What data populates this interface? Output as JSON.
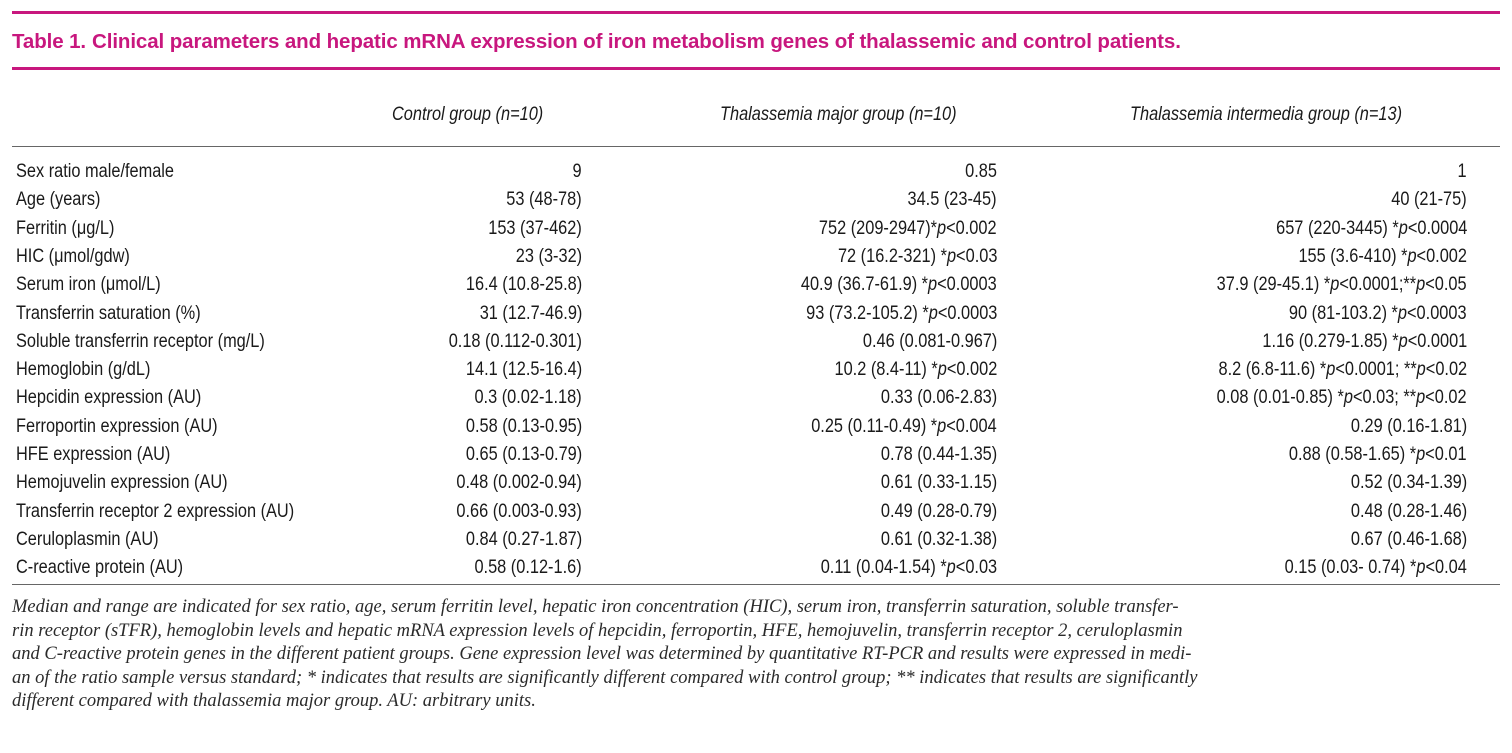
{
  "colors": {
    "accent": "#c8177e",
    "text": "#1a1a1a"
  },
  "caption": {
    "label": "Table 1.",
    "text": "Clinical parameters and hepatic mRNA expression of iron metabolism genes of thalassemic and control patients."
  },
  "columns": [
    "Control group (n=10)",
    "Thalassemia major group (n=10)",
    "Thalassemia intermedia group (n=13)"
  ],
  "rows": [
    {
      "param": "Sex ratio male/female",
      "c1": "9",
      "c2": "0.85",
      "c3": "1"
    },
    {
      "param": "Age (years)",
      "c1": "53 (48-78)",
      "c2": "34.5 (23-45)",
      "c3": "40 (21-75)"
    },
    {
      "param": "Ferritin (μg/L)",
      "c1": "153 (37-462)",
      "c2": "752 (209-2947)*p<0.002",
      "c3": "657 (220-3445) *p<0.0004"
    },
    {
      "param": "HIC (μmol/gdw)",
      "c1": "23 (3-32)",
      "c2": "72 (16.2-321) *p<0.03",
      "c3": "155 (3.6-410) *p<0.002"
    },
    {
      "param": "Serum iron (μmol/L)",
      "c1": "16.4 (10.8-25.8)",
      "c2": "40.9 (36.7-61.9) *p<0.0003",
      "c3": "37.9 (29-45.1) *p<0.0001;**p<0.05"
    },
    {
      "param": "Transferrin saturation (%)",
      "c1": "31 (12.7-46.9)",
      "c2": "93 (73.2-105.2) *p<0.0003",
      "c3": "90 (81-103.2) *p<0.0003"
    },
    {
      "param": "Soluble transferrin receptor (mg/L)",
      "c1": "0.18 (0.112-0.301)",
      "c2": "0.46 (0.081-0.967)",
      "c3": "1.16 (0.279-1.85) *p<0.0001"
    },
    {
      "param": "Hemoglobin (g/dL)",
      "c1": "14.1 (12.5-16.4)",
      "c2": "10.2 (8.4-11) *p<0.002",
      "c3": "8.2 (6.8-11.6) *p<0.0001; **p<0.02"
    },
    {
      "param": "Hepcidin expression (AU)",
      "c1": "0.3 (0.02-1.18)",
      "c2": "0.33 (0.06-2.83)",
      "c3": "0.08 (0.01-0.85) *p<0.03; **p<0.02"
    },
    {
      "param": "Ferroportin expression (AU)",
      "c1": "0.58 (0.13-0.95)",
      "c2": "0.25 (0.11-0.49) *p<0.004",
      "c3": "0.29 (0.16-1.81)"
    },
    {
      "param": "HFE expression (AU)",
      "c1": "0.65 (0.13-0.79)",
      "c2": "0.78 (0.44-1.35)",
      "c3": "0.88 (0.58-1.65) *p<0.01"
    },
    {
      "param": "Hemojuvelin expression (AU)",
      "c1": "0.48 (0.002-0.94)",
      "c2": "0.61 (0.33-1.15)",
      "c3": "0.52 (0.34-1.39)"
    },
    {
      "param": "Transferrin receptor 2 expression (AU)",
      "c1": "0.66 (0.003-0.93)",
      "c2": "0.49 (0.28-0.79)",
      "c3": "0.48 (0.28-1.46)"
    },
    {
      "param": "Ceruloplasmin (AU)",
      "c1": "0.84 (0.27-1.87)",
      "c2": "0.61 (0.32-1.38)",
      "c3": "0.67 (0.46-1.68)"
    },
    {
      "param": "C-reactive protein (AU)",
      "c1": "0.58 (0.12-1.6)",
      "c2": "0.11 (0.04-1.54) *p<0.03",
      "c3": "0.15 (0.03- 0.74) *p<0.04"
    }
  ],
  "footnote_lines": [
    "Median and range are indicated for sex ratio, age, serum ferritin level, hepatic iron concentration (HIC), serum iron, transferrin saturation, soluble transfer-",
    "rin receptor (sTFR), hemoglobin levels and hepatic mRNA expression levels of hepcidin, ferroportin, HFE, hemojuvelin, transferrin receptor 2, ceruloplasmin",
    "and C-reactive protein genes in the different patient groups. Gene expression level was determined by quantitative RT-PCR and results were expressed in medi-",
    "an of the ratio sample versus standard; * indicates that results are significantly different compared with control group; ** indicates that results are significantly",
    "different compared with thalassemia major group. AU: arbitrary units."
  ]
}
